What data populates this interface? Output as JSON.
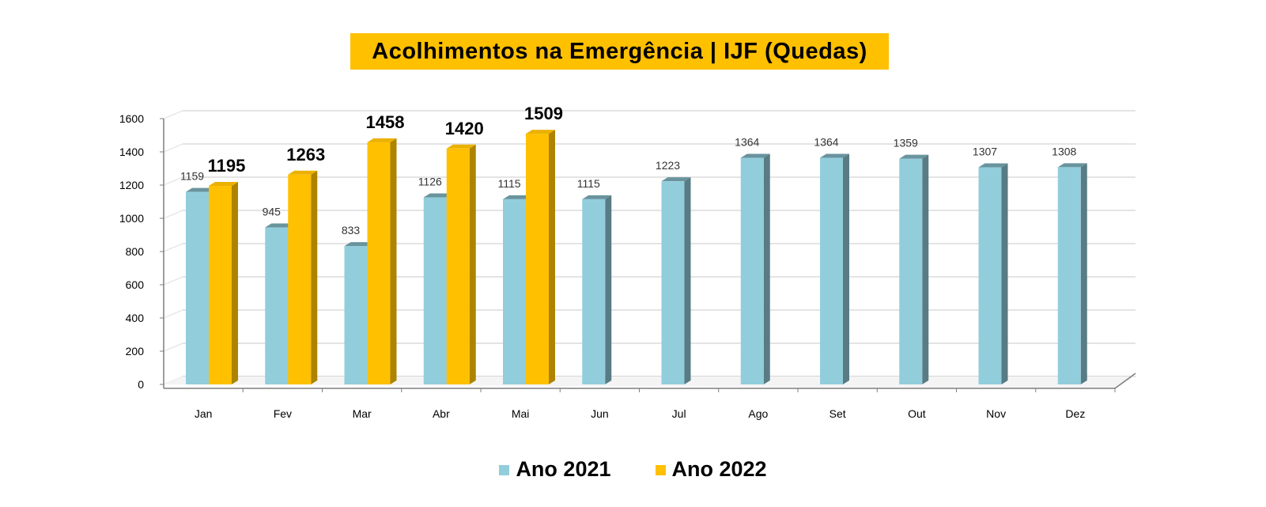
{
  "chart_data": {
    "type": "bar",
    "title": "Acolhimentos na Emergência | IJF (Quedas)",
    "categories": [
      "Jan",
      "Fev",
      "Mar",
      "Abr",
      "Mai",
      "Jun",
      "Jul",
      "Ago",
      "Set",
      "Out",
      "Nov",
      "Dez"
    ],
    "series": [
      {
        "name": "Ano 2021",
        "color": "#92CDDC",
        "values": [
          1159,
          945,
          833,
          1126,
          1115,
          1115,
          1223,
          1364,
          1364,
          1359,
          1307,
          1308
        ]
      },
      {
        "name": "Ano 2022",
        "color": "#FFC000",
        "values": [
          1195,
          1263,
          1458,
          1420,
          1509,
          null,
          null,
          null,
          null,
          null,
          null,
          null
        ]
      }
    ],
    "ylim": [
      0,
      1600
    ],
    "yticks": [
      "0",
      "200",
      "400",
      "600",
      "800",
      "1000",
      "1200",
      "1400",
      "1600"
    ],
    "xlabel": "",
    "ylabel": "",
    "grid": true,
    "legend_position": "bottom"
  }
}
